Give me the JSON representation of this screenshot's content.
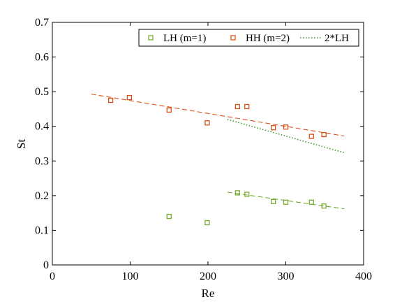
{
  "chart_data": {
    "type": "scatter",
    "xlabel": "Re",
    "ylabel": "St",
    "xlim": [
      0,
      400
    ],
    "ylim": [
      0,
      0.7
    ],
    "x_ticks": [
      "0",
      "100",
      "200",
      "300",
      "400"
    ],
    "y_ticks": [
      "0",
      "0.1",
      "0.2",
      "0.3",
      "0.4",
      "0.5",
      "0.6",
      "0.7"
    ],
    "x_tick_values": [
      0,
      100,
      200,
      300,
      400
    ],
    "y_tick_values": [
      0,
      0.1,
      0.2,
      0.3,
      0.4,
      0.5,
      0.6,
      0.7
    ],
    "grid": false,
    "legend_position": "top-right",
    "series": [
      {
        "name": "LH (m=1)",
        "kind": "markers",
        "marker": "square",
        "color": "#77AC30",
        "points": [
          [
            150,
            0.14
          ],
          [
            199,
            0.122
          ],
          [
            238,
            0.208
          ],
          [
            250,
            0.204
          ],
          [
            284,
            0.183
          ],
          [
            300,
            0.181
          ],
          [
            333,
            0.181
          ],
          [
            349,
            0.17
          ]
        ]
      },
      {
        "name": "HH (m=2)",
        "kind": "markers",
        "marker": "square",
        "color": "#D95319",
        "points": [
          [
            75,
            0.475
          ],
          [
            99,
            0.483
          ],
          [
            150,
            0.447
          ],
          [
            199,
            0.41
          ],
          [
            238,
            0.457
          ],
          [
            250,
            0.457
          ],
          [
            284,
            0.396
          ],
          [
            300,
            0.398
          ],
          [
            333,
            0.371
          ],
          [
            349,
            0.376
          ]
        ]
      },
      {
        "name": "2*LH",
        "kind": "line",
        "dash": "dotted",
        "color": "#3E9A2E",
        "points": [
          [
            225,
            0.42
          ],
          [
            375,
            0.324
          ]
        ]
      }
    ],
    "fit_lines": [
      {
        "of": "HH (m=2)",
        "dash": "dashed",
        "color": "#D95319",
        "points": [
          [
            50,
            0.493
          ],
          [
            375,
            0.372
          ]
        ]
      },
      {
        "of": "LH (m=1)",
        "dash": "dashed",
        "color": "#77AC30",
        "points": [
          [
            225,
            0.21
          ],
          [
            375,
            0.162
          ]
        ]
      }
    ]
  }
}
